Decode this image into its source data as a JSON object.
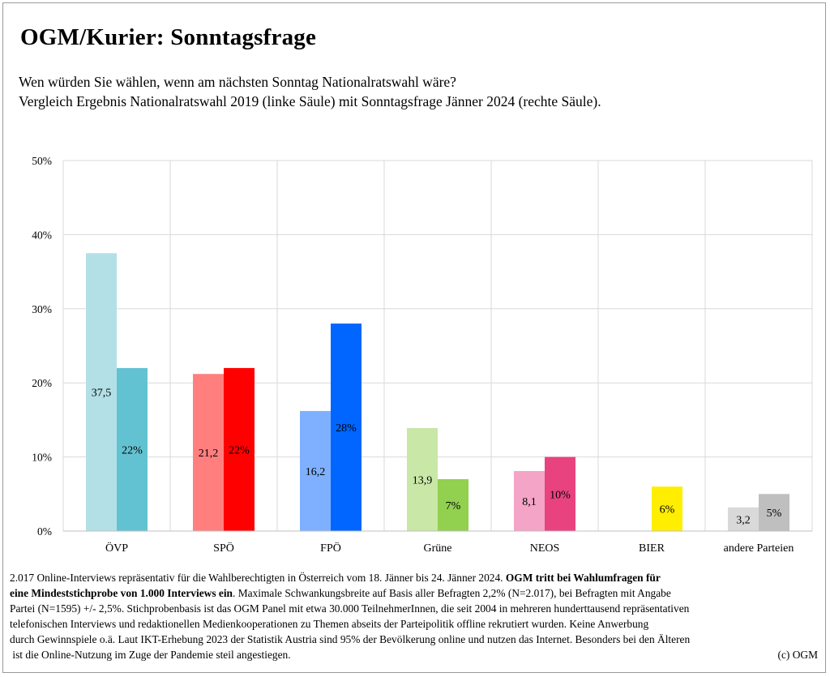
{
  "title": "OGM/Kurier: Sonntagsfrage",
  "subtitle": [
    "Wen würden Sie wählen, wenn am nächsten Sonntag Nationalratswahl wäre?",
    "Vergleich Ergebnis Nationalratswahl 2019 (linke Säule) mit Sonntagsfrage Jänner 2024 (rechte Säule)."
  ],
  "chart_data": {
    "type": "bar",
    "categories": [
      "ÖVP",
      "SPÖ",
      "FPÖ",
      "Grüne",
      "NEOS",
      "BIER",
      "andere Parteien"
    ],
    "series": [
      {
        "values": [
          37.5,
          21.2,
          16.2,
          13.9,
          8.1,
          null,
          3.2
        ],
        "labels": [
          "37,5",
          "21,2",
          "16,2",
          "13,9",
          "8,1",
          "",
          "3,2"
        ],
        "colors": [
          "#b3e0e6",
          "#ff7f7f",
          "#7fb0ff",
          "#c9e7a6",
          "#f4a4c6",
          "#ffffff",
          "#d9d9d9"
        ]
      },
      {
        "values": [
          22,
          22,
          28,
          7,
          10,
          6,
          5
        ],
        "labels": [
          "22%",
          "22%",
          "28%",
          "7%",
          "10%",
          "6%",
          "5%"
        ],
        "colors": [
          "#63c2d1",
          "#ff0000",
          "#0066ff",
          "#92d050",
          "#e8437f",
          "#ffee00",
          "#bfbfbf"
        ]
      }
    ],
    "yticks": [
      "0%",
      "10%",
      "20%",
      "30%",
      "40%",
      "50%"
    ],
    "ylim": [
      0,
      50
    ],
    "grid": true,
    "legend": "none"
  },
  "footnote": {
    "line1_plain": "2.017 Online-Interviews repräsentativ für die Wahlberechtigten in Österreich vom 18. Jänner bis 24. Jänner 2024. ",
    "line1_bold": "OGM tritt bei Wahlumfragen für",
    "line2_bold": "eine Mindeststichprobe von 1.000 Interviews ein",
    "line2_plain": ". Maximale Schwankungsbreite auf Basis aller Befragten 2,2% (N=2.017), bei Befragten mit Angabe",
    "line3": "Partei (N=1595) +/- 2,5%. Stichprobenbasis ist das OGM Panel mit etwa 30.000 TeilnehmerInnen, die seit 2004 in mehreren hunderttausend repräsentativen",
    "line4": "telefonischen Interviews und redaktionellen Medienkooperationen zu Themen abseits der Parteipolitik offline rekrutiert wurden. Keine Anwerbung",
    "line5": "durch Gewinnspiele o.ä. Laut IKT-Erhebung 2023 der Statistik Austria sind 95% der Bevölkerung online und nutzen das Internet. Besonders bei den Älteren",
    "line6": " ist die Online-Nutzung im Zuge der Pandemie steil angestiegen.",
    "copyright": "(c) OGM"
  }
}
